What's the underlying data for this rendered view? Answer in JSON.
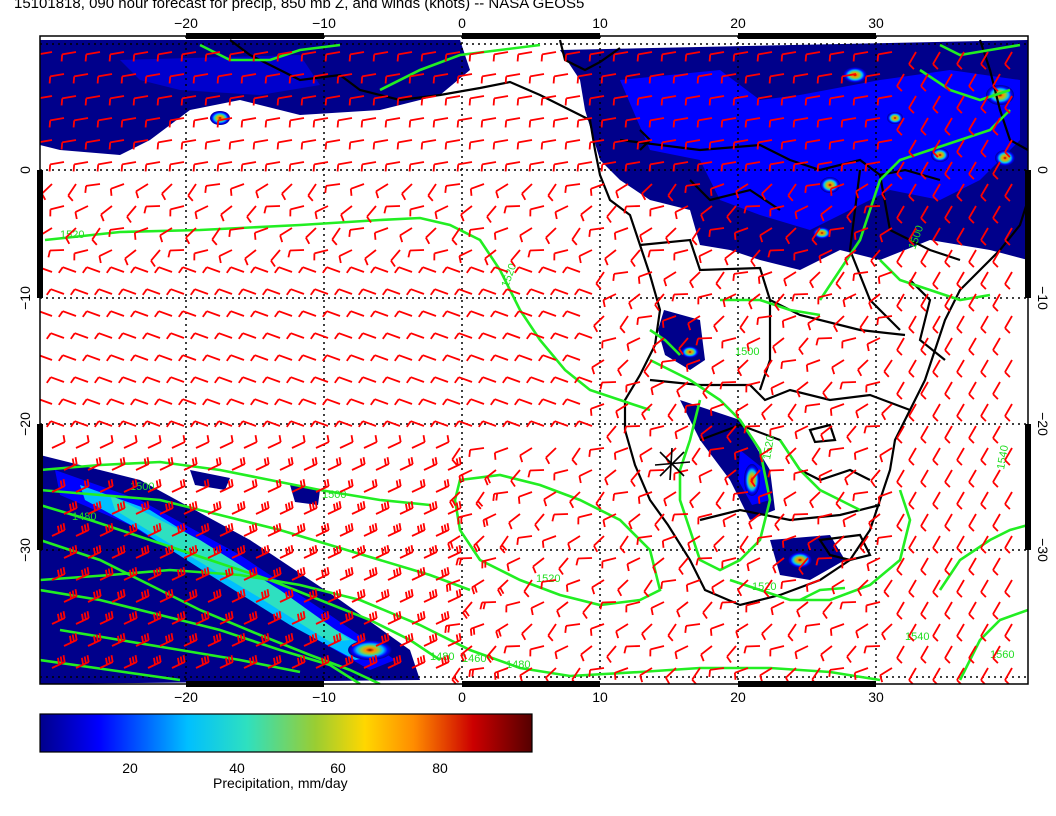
{
  "title": "15101818, 090 hour forecast for precip, 850 mb Z, and winds (knots) -- NASA GEOS5",
  "map": {
    "lon_ticks": [
      "−20",
      "−10",
      "0",
      "10",
      "20",
      "30"
    ],
    "lat_ticks": [
      "0",
      "−10",
      "−20",
      "−30"
    ],
    "contour_labels": [
      "1520",
      "1520",
      "1500",
      "1480",
      "1480",
      "1500",
      "1520",
      "1520",
      "1500",
      "1560",
      "1540",
      "1540",
      "1500",
      "1480",
      "1460",
      "1520"
    ],
    "colors": {
      "winds": "#ff0000",
      "contours": "#22ee22",
      "coast": "#000000",
      "grid": "#000000"
    }
  },
  "colorbar": {
    "label": "Precipitation, mm/day",
    "ticks": [
      "20",
      "40",
      "60",
      "80"
    ],
    "colormap": [
      "#00008b",
      "#0000ff",
      "#00bfff",
      "#2ee0c0",
      "#9acd32",
      "#ffd700",
      "#ff8c00",
      "#cc0000",
      "#550000"
    ]
  }
}
